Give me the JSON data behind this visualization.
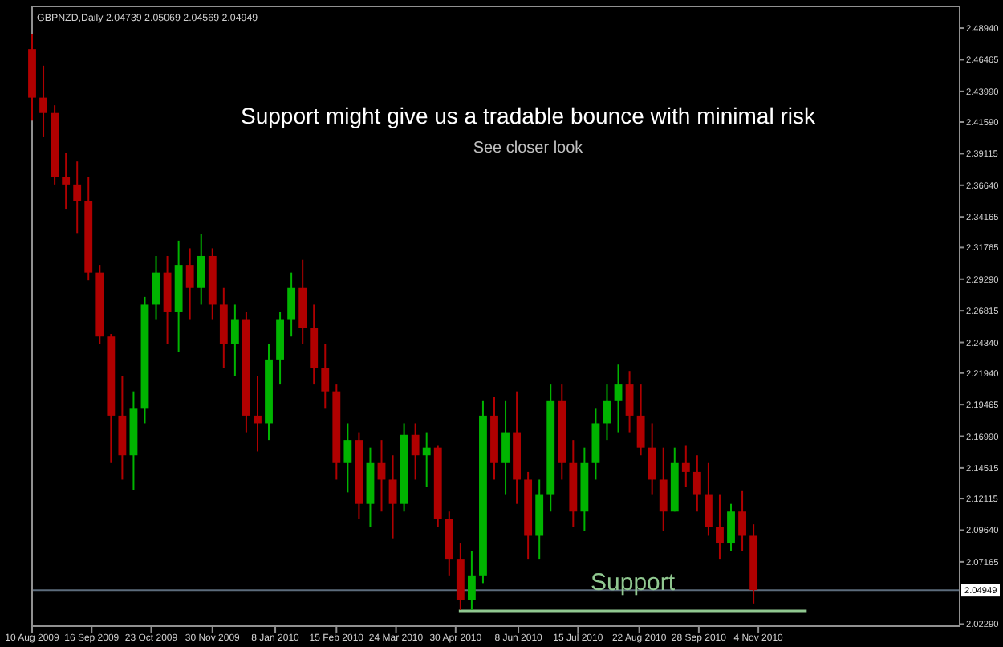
{
  "chart_data": {
    "type": "candlestick",
    "title": "Support might give us a tradable bounce with minimal risk",
    "subtitle": "See closer look",
    "annotations": [
      "GBPNZD,Daily  2.04739 2.05069 2.04569 2.04949"
    ],
    "x": [
      "2009-08-10",
      "2009-08-17",
      "2009-08-24",
      "2009-08-31",
      "2009-09-07",
      "2009-09-14",
      "2009-09-21",
      "2009-09-28",
      "2009-10-05",
      "2009-10-12",
      "2009-10-19",
      "2009-10-26",
      "2009-11-02",
      "2009-11-09",
      "2009-11-16",
      "2009-11-23",
      "2009-11-30",
      "2009-12-07",
      "2009-12-14",
      "2009-12-21",
      "2009-12-28",
      "2010-01-04",
      "2010-01-11",
      "2010-01-18",
      "2010-01-25",
      "2010-02-01",
      "2010-02-08",
      "2010-02-15",
      "2010-02-22",
      "2010-03-01",
      "2010-03-08",
      "2010-03-15",
      "2010-03-22",
      "2010-03-29",
      "2010-04-05",
      "2010-04-12",
      "2010-04-19",
      "2010-04-26",
      "2010-05-03",
      "2010-05-10",
      "2010-05-17",
      "2010-05-24",
      "2010-05-31",
      "2010-06-07",
      "2010-06-14",
      "2010-06-21",
      "2010-06-28",
      "2010-07-05",
      "2010-07-12",
      "2010-07-19",
      "2010-07-26",
      "2010-08-02",
      "2010-08-09",
      "2010-08-16",
      "2010-08-23",
      "2010-08-30",
      "2010-09-06",
      "2010-09-13",
      "2010-09-20",
      "2010-09-27",
      "2010-10-04",
      "2010-10-11",
      "2010-10-18",
      "2010-10-25",
      "2010-11-01"
    ],
    "ohlc": [
      [
        2.473,
        2.485,
        2.417,
        2.435
      ],
      [
        2.435,
        2.46,
        2.404,
        2.423
      ],
      [
        2.423,
        2.429,
        2.367,
        2.373
      ],
      [
        2.373,
        2.392,
        2.348,
        2.367
      ],
      [
        2.367,
        2.385,
        2.329,
        2.354
      ],
      [
        2.354,
        2.373,
        2.292,
        2.298
      ],
      [
        2.298,
        2.304,
        2.242,
        2.248
      ],
      [
        2.248,
        2.25,
        2.149,
        2.186
      ],
      [
        2.186,
        2.217,
        2.136,
        2.155
      ],
      [
        2.155,
        2.205,
        2.128,
        2.192
      ],
      [
        2.192,
        2.279,
        2.18,
        2.273
      ],
      [
        2.273,
        2.311,
        2.261,
        2.298
      ],
      [
        2.298,
        2.311,
        2.242,
        2.267
      ],
      [
        2.267,
        2.323,
        2.236,
        2.304
      ],
      [
        2.304,
        2.317,
        2.261,
        2.286
      ],
      [
        2.286,
        2.328,
        2.273,
        2.311
      ],
      [
        2.311,
        2.317,
        2.261,
        2.273
      ],
      [
        2.273,
        2.286,
        2.223,
        2.242
      ],
      [
        2.242,
        2.273,
        2.217,
        2.261
      ],
      [
        2.261,
        2.267,
        2.173,
        2.186
      ],
      [
        2.186,
        2.217,
        2.158,
        2.18
      ],
      [
        2.18,
        2.242,
        2.167,
        2.23
      ],
      [
        2.23,
        2.267,
        2.211,
        2.261
      ],
      [
        2.261,
        2.298,
        2.248,
        2.286
      ],
      [
        2.286,
        2.308,
        2.242,
        2.255
      ],
      [
        2.255,
        2.273,
        2.211,
        2.223
      ],
      [
        2.223,
        2.242,
        2.192,
        2.205
      ],
      [
        2.205,
        2.211,
        2.136,
        2.149
      ],
      [
        2.149,
        2.18,
        2.126,
        2.167
      ],
      [
        2.167,
        2.173,
        2.105,
        2.117
      ],
      [
        2.117,
        2.161,
        2.099,
        2.149
      ],
      [
        2.149,
        2.167,
        2.111,
        2.136
      ],
      [
        2.136,
        2.155,
        2.09,
        2.117
      ],
      [
        2.117,
        2.18,
        2.111,
        2.171
      ],
      [
        2.171,
        2.18,
        2.136,
        2.155
      ],
      [
        2.155,
        2.173,
        2.13,
        2.161
      ],
      [
        2.161,
        2.163,
        2.099,
        2.105
      ],
      [
        2.105,
        2.111,
        2.061,
        2.074
      ],
      [
        2.074,
        2.086,
        2.034,
        2.042
      ],
      [
        2.042,
        2.08,
        2.034,
        2.061
      ],
      [
        2.061,
        2.198,
        2.055,
        2.186
      ],
      [
        2.186,
        2.201,
        2.136,
        2.149
      ],
      [
        2.149,
        2.198,
        2.124,
        2.173
      ],
      [
        2.173,
        2.205,
        2.117,
        2.136
      ],
      [
        2.136,
        2.142,
        2.074,
        2.092
      ],
      [
        2.092,
        2.136,
        2.074,
        2.124
      ],
      [
        2.124,
        2.211,
        2.111,
        2.198
      ],
      [
        2.198,
        2.211,
        2.136,
        2.149
      ],
      [
        2.149,
        2.167,
        2.099,
        2.111
      ],
      [
        2.111,
        2.161,
        2.096,
        2.149
      ],
      [
        2.149,
        2.192,
        2.136,
        2.18
      ],
      [
        2.18,
        2.211,
        2.167,
        2.198
      ],
      [
        2.198,
        2.226,
        2.173,
        2.211
      ],
      [
        2.211,
        2.221,
        2.173,
        2.186
      ],
      [
        2.186,
        2.211,
        2.155,
        2.161
      ],
      [
        2.161,
        2.18,
        2.124,
        2.136
      ],
      [
        2.136,
        2.161,
        2.096,
        2.111
      ],
      [
        2.111,
        2.161,
        2.111,
        2.149
      ],
      [
        2.149,
        2.163,
        2.13,
        2.142
      ],
      [
        2.142,
        2.155,
        2.111,
        2.124
      ],
      [
        2.124,
        2.149,
        2.092,
        2.099
      ],
      [
        2.099,
        2.124,
        2.074,
        2.086
      ],
      [
        2.086,
        2.117,
        2.08,
        2.111
      ],
      [
        2.111,
        2.127,
        2.08,
        2.092
      ],
      [
        2.092,
        2.101,
        2.039,
        2.0495
      ]
    ],
    "series": [
      {
        "type": "line",
        "name": "Support",
        "color": "#90c890",
        "x": [
          "2010-05-02",
          "2010-12-04"
        ],
        "values": [
          2.033,
          2.033
        ]
      }
    ],
    "ref_lines": [
      {
        "axis": "y",
        "value": 2.04949,
        "label": "2.04949",
        "color": "#5c6c7c"
      }
    ],
    "xlim": [
      "2009-08-10",
      "2011-03-09"
    ],
    "xticks": [
      {
        "value": "2009-08-10",
        "label": "10 Aug 2009"
      },
      {
        "value": "2009-09-16",
        "label": "16 Sep 2009"
      },
      {
        "value": "2009-10-23",
        "label": "23 Oct 2009"
      },
      {
        "value": "2009-11-30",
        "label": "30 Nov 2009"
      },
      {
        "value": "2010-01-08",
        "label": "8 Jan 2010"
      },
      {
        "value": "2010-02-15",
        "label": "15 Feb 2010"
      },
      {
        "value": "2010-03-24",
        "label": "24 Mar 2010"
      },
      {
        "value": "2010-04-30",
        "label": "30 Apr 2010"
      },
      {
        "value": "2010-06-08",
        "label": "8 Jun 2010"
      },
      {
        "value": "2010-07-15",
        "label": "15 Jul 2010"
      },
      {
        "value": "2010-08-22",
        "label": "22 Aug 2010"
      },
      {
        "value": "2010-09-28",
        "label": "28 Sep 2010"
      },
      {
        "value": "2010-11-04",
        "label": "4 Nov 2010"
      }
    ],
    "ylim": [
      2.0213,
      2.5064
    ],
    "yticks": [
      {
        "value": 2.4894,
        "label": "2.48940"
      },
      {
        "value": 2.46465,
        "label": "2.46465"
      },
      {
        "value": 2.4399,
        "label": "2.43990"
      },
      {
        "value": 2.4159,
        "label": "2.41590"
      },
      {
        "value": 2.39115,
        "label": "2.39115"
      },
      {
        "value": 2.3664,
        "label": "2.36640"
      },
      {
        "value": 2.34165,
        "label": "2.34165"
      },
      {
        "value": 2.31765,
        "label": "2.31765"
      },
      {
        "value": 2.2929,
        "label": "2.29290"
      },
      {
        "value": 2.26815,
        "label": "2.26815"
      },
      {
        "value": 2.2434,
        "label": "2.24340"
      },
      {
        "value": 2.2194,
        "label": "2.21940"
      },
      {
        "value": 2.19465,
        "label": "2.19465"
      },
      {
        "value": 2.1699,
        "label": "2.16990"
      },
      {
        "value": 2.14515,
        "label": "2.14515"
      },
      {
        "value": 2.12115,
        "label": "2.12115"
      },
      {
        "value": 2.0964,
        "label": "2.09640"
      },
      {
        "value": 2.07165,
        "label": "2.07165"
      },
      {
        "value": 2.0229,
        "label": "2.02290"
      }
    ],
    "grid": false
  }
}
